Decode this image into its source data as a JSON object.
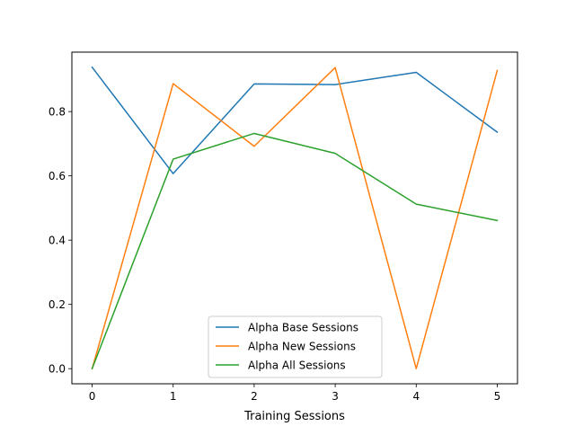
{
  "chart_data": {
    "type": "line",
    "title": "",
    "xlabel": "Training Sessions",
    "ylabel": "",
    "x": [
      0,
      1,
      2,
      3,
      4,
      5
    ],
    "xlim": [
      -0.25,
      5.25
    ],
    "ylim": [
      -0.047,
      0.985
    ],
    "xticks": [
      0,
      1,
      2,
      3,
      4,
      5
    ],
    "yticks": [
      0.0,
      0.2,
      0.4,
      0.6,
      0.8
    ],
    "ytick_labels": [
      "0.0",
      "0.2",
      "0.4",
      "0.6",
      "0.8"
    ],
    "grid": false,
    "legend_position": "lower-center",
    "series": [
      {
        "name": "Alpha Base Sessions",
        "color": "#1f77b4",
        "values": [
          0.938,
          0.607,
          0.886,
          0.884,
          0.922,
          0.736
        ]
      },
      {
        "name": "Alpha New Sessions",
        "color": "#ff7f0e",
        "values": [
          0.0,
          0.887,
          0.692,
          0.937,
          0.0,
          0.928
        ]
      },
      {
        "name": "Alpha All Sessions",
        "color": "#2ca02c",
        "values": [
          0.0,
          0.652,
          0.732,
          0.67,
          0.512,
          0.461
        ]
      }
    ]
  }
}
